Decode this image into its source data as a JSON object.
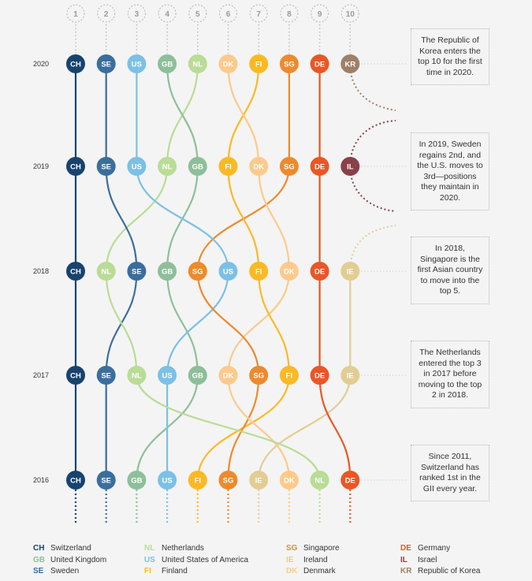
{
  "chart_data": {
    "type": "bump",
    "title": "",
    "rank_labels": [
      "1",
      "2",
      "3",
      "4",
      "5",
      "6",
      "7",
      "8",
      "9",
      "10"
    ],
    "years": [
      "2020",
      "2019",
      "2018",
      "2017",
      "2016"
    ],
    "rankings": {
      "2020": [
        "CH",
        "SE",
        "US",
        "GB",
        "NL",
        "DK",
        "FI",
        "SG",
        "DE",
        "KR"
      ],
      "2019": [
        "CH",
        "SE",
        "US",
        "NL",
        "GB",
        "FI",
        "DK",
        "SG",
        "DE",
        "IL"
      ],
      "2018": [
        "CH",
        "NL",
        "SE",
        "GB",
        "SG",
        "US",
        "FI",
        "DK",
        "DE",
        "IE"
      ],
      "2017": [
        "CH",
        "SE",
        "NL",
        "US",
        "GB",
        "DK",
        "SG",
        "FI",
        "DE",
        "IE"
      ],
      "2016": [
        "CH",
        "SE",
        "GB",
        "US",
        "FI",
        "SG",
        "IE",
        "DK",
        "NL",
        "DE"
      ]
    },
    "countries": {
      "CH": {
        "name": "Switzerland",
        "color": "#17446e"
      },
      "GB": {
        "name": "United Kingdom",
        "color": "#8dbf9a"
      },
      "SE": {
        "name": "Sweden",
        "color": "#3a6e9e"
      },
      "NL": {
        "name": "Netherlands",
        "color": "#b9dc96"
      },
      "US": {
        "name": "United States of America",
        "color": "#7cc0e6"
      },
      "FI": {
        "name": "Finland",
        "color": "#fbb924"
      },
      "SG": {
        "name": "Singapore",
        "color": "#ee8a2c"
      },
      "IE": {
        "name": "Ireland",
        "color": "#e2cd93"
      },
      "DK": {
        "name": "Denmark",
        "color": "#fdca8b"
      },
      "DE": {
        "name": "Germany",
        "color": "#ea5624"
      },
      "IL": {
        "name": "Israel",
        "color": "#8a4048"
      },
      "KR": {
        "name": "Republic of Korea",
        "color": "#9e8068"
      }
    }
  },
  "notes": [
    {
      "year": "2020",
      "text": "The Republic of Korea enters the top 10 for the first time in 2020."
    },
    {
      "year": "2019",
      "text": "In 2019, Sweden regains 2nd, and the U.S. moves to 3rd—positions they maintain in 2020."
    },
    {
      "year": "2018",
      "text": "In 2018, Singapore is the first Asian country to move into the top 5."
    },
    {
      "year": "2017",
      "text": "The Netherlands entered the top 3 in 2017 before moving to the top 2 in 2018."
    },
    {
      "year": "2016",
      "text": "Since 2011, Switzerland has ranked 1st in the GII every year."
    }
  ],
  "legend": [
    {
      "code": "CH",
      "label": "Switzerland",
      "color": "#17446e"
    },
    {
      "code": "GB",
      "label": "United Kingdom",
      "color": "#8dbf9a"
    },
    {
      "code": "SE",
      "label": "Sweden",
      "color": "#3a6e9e"
    },
    {
      "code": "NL",
      "label": "Netherlands",
      "color": "#b9dc96"
    },
    {
      "code": "US",
      "label": "United States of America",
      "color": "#7cc0e6"
    },
    {
      "code": "FI",
      "label": "Finland",
      "color": "#fbb924"
    },
    {
      "code": "SG",
      "label": "Singapore",
      "color": "#ee8a2c"
    },
    {
      "code": "IE",
      "label": "Ireland",
      "color": "#e2cd93"
    },
    {
      "code": "DK",
      "label": "Denmark",
      "color": "#fdca8b"
    },
    {
      "code": "DE",
      "label": "Germany",
      "color": "#ea5624"
    },
    {
      "code": "IL",
      "label": "Israel",
      "color": "#8a4048"
    },
    {
      "code": "KR",
      "label": "Republic of Korea",
      "color": "#9e8068"
    }
  ]
}
